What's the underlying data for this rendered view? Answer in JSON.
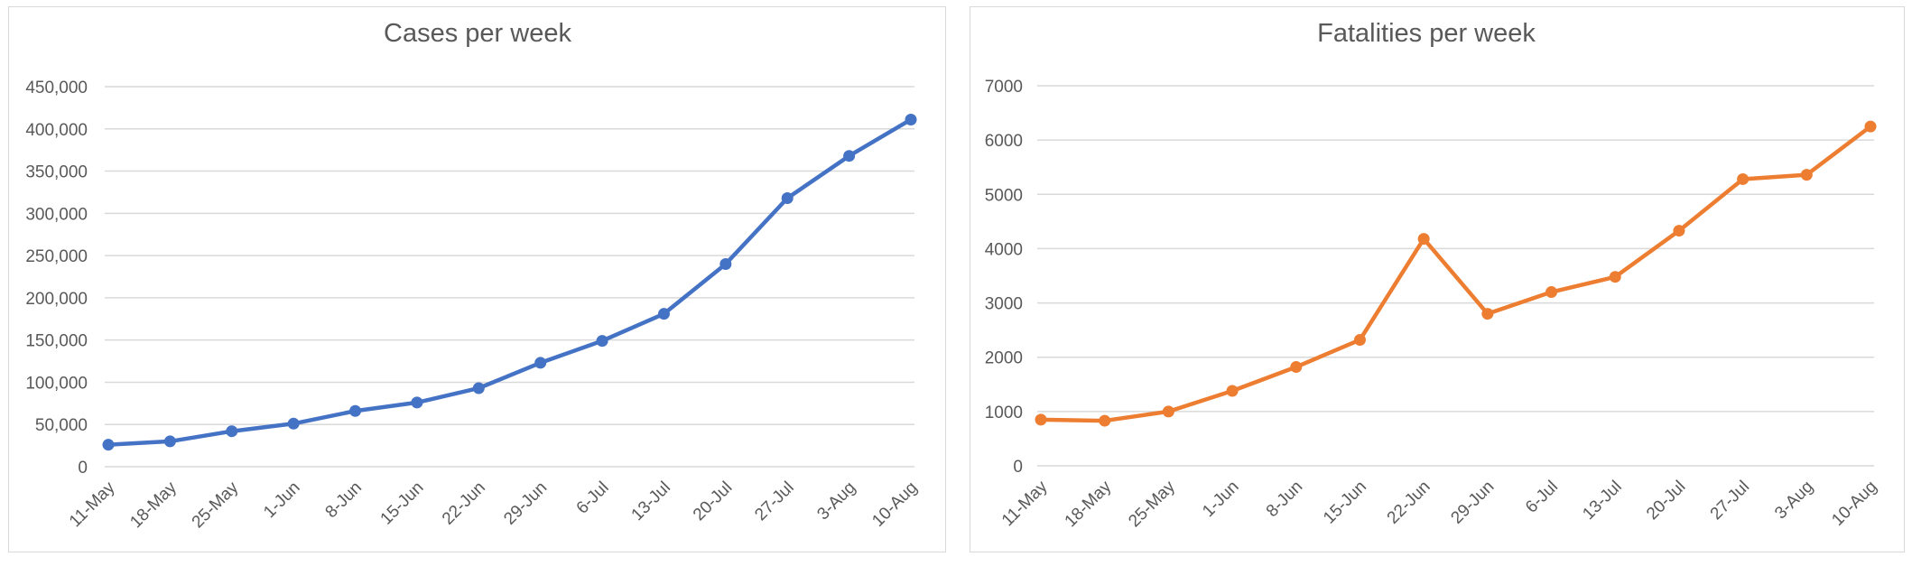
{
  "chart_data": [
    {
      "type": "line",
      "title": "Cases per week",
      "xlabel": "",
      "ylabel": "",
      "categories": [
        "11-May",
        "18-May",
        "25-May",
        "1-Jun",
        "8-Jun",
        "15-Jun",
        "22-Jun",
        "29-Jun",
        "6-Jul",
        "13-Jul",
        "20-Jul",
        "27-Jul",
        "3-Aug",
        "10-Aug"
      ],
      "series": [
        {
          "values": [
            26000,
            30000,
            42000,
            51000,
            66000,
            76000,
            93000,
            123000,
            149000,
            181000,
            240000,
            318000,
            368000,
            411000
          ],
          "color": "#4472c4"
        }
      ],
      "ylim": [
        0,
        450000
      ],
      "yticks": [
        0,
        50000,
        100000,
        150000,
        200000,
        250000,
        300000,
        350000,
        400000,
        450000
      ],
      "ytick_labels": [
        "0",
        "50,000",
        "100,000",
        "150,000",
        "200,000",
        "250,000",
        "300,000",
        "350,000",
        "400,000",
        "450,000"
      ],
      "grid": true,
      "legend": "none"
    },
    {
      "type": "line",
      "title": "Fatalities per week",
      "xlabel": "",
      "ylabel": "",
      "categories": [
        "11-May",
        "18-May",
        "25-May",
        "1-Jun",
        "8-Jun",
        "15-Jun",
        "22-Jun",
        "29-Jun",
        "6-Jul",
        "13-Jul",
        "20-Jul",
        "27-Jul",
        "3-Aug",
        "10-Aug"
      ],
      "series": [
        {
          "values": [
            850,
            830,
            1000,
            1380,
            1820,
            2320,
            4180,
            2800,
            3200,
            3480,
            4330,
            5280,
            5360,
            6250
          ],
          "color": "#ed7d31"
        }
      ],
      "ylim": [
        0,
        7000
      ],
      "yticks": [
        0,
        1000,
        2000,
        3000,
        4000,
        5000,
        6000,
        7000
      ],
      "ytick_labels": [
        "0",
        "1000",
        "2000",
        "3000",
        "4000",
        "5000",
        "6000",
        "7000"
      ],
      "grid": true,
      "legend": "none"
    }
  ]
}
